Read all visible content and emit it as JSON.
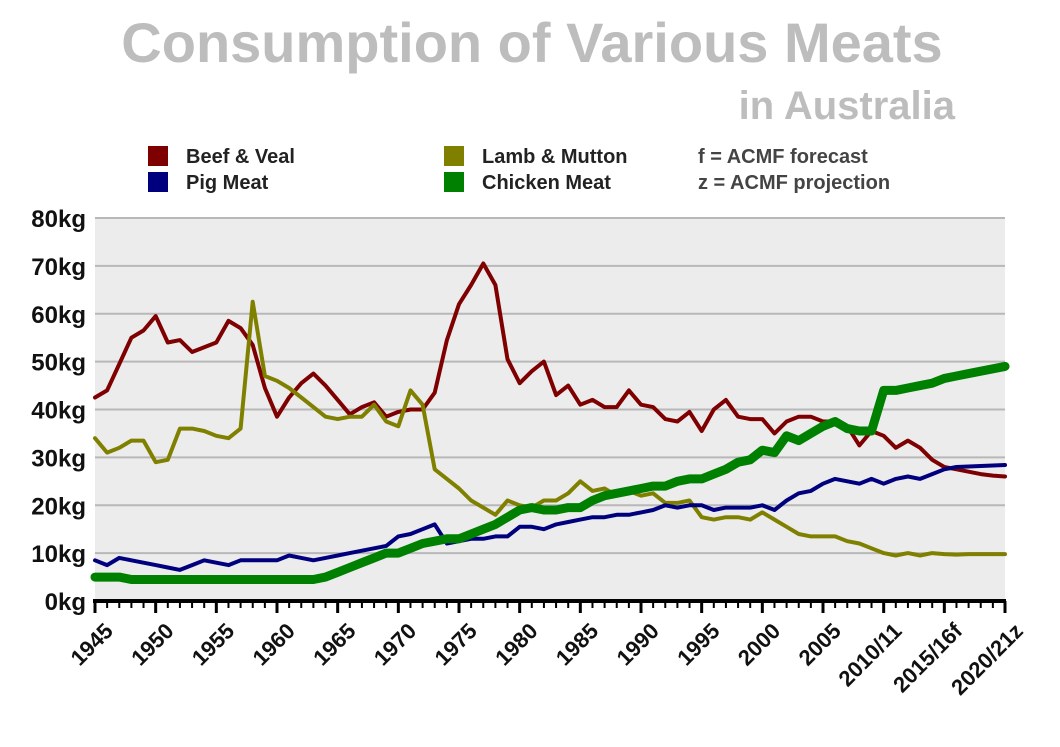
{
  "chart_data": {
    "type": "line",
    "title": "Consumption of Various Meats",
    "subtitle": "in Australia",
    "notes": [
      "f  = ACMF forecast",
      "z = ACMF projection"
    ],
    "x": [
      1945,
      1946,
      1947,
      1948,
      1949,
      1950,
      1951,
      1952,
      1953,
      1954,
      1955,
      1956,
      1957,
      1958,
      1959,
      1960,
      1961,
      1962,
      1963,
      1964,
      1965,
      1966,
      1967,
      1968,
      1969,
      1970,
      1971,
      1972,
      1973,
      1974,
      1975,
      1976,
      1977,
      1978,
      1979,
      1980,
      1981,
      1982,
      1983,
      1984,
      1985,
      1986,
      1987,
      1988,
      1989,
      1990,
      1991,
      1992,
      1993,
      1994,
      1995,
      1996,
      1997,
      1998,
      1999,
      2000,
      2001,
      2002,
      2003,
      2004,
      2005,
      2006,
      2007,
      2008,
      2009,
      2010,
      2011,
      2012,
      2013,
      2014,
      2015,
      2016,
      2017,
      2018,
      2019,
      2020
    ],
    "x_tick_labels": [
      {
        "x": 1945,
        "label": "1945"
      },
      {
        "x": 1950,
        "label": "1950"
      },
      {
        "x": 1955,
        "label": "1955"
      },
      {
        "x": 1960,
        "label": "1960"
      },
      {
        "x": 1965,
        "label": "1965"
      },
      {
        "x": 1970,
        "label": "1970"
      },
      {
        "x": 1975,
        "label": "1975"
      },
      {
        "x": 1980,
        "label": "1980"
      },
      {
        "x": 1985,
        "label": "1985"
      },
      {
        "x": 1990,
        "label": "1990"
      },
      {
        "x": 1995,
        "label": "1995"
      },
      {
        "x": 2000,
        "label": "2000"
      },
      {
        "x": 2005,
        "label": "2005"
      },
      {
        "x": 2010,
        "label": "2010/11"
      },
      {
        "x": 2015,
        "label": "2015/16f"
      },
      {
        "x": 2020,
        "label": "2020/21z"
      }
    ],
    "yticks": [
      0,
      10,
      20,
      30,
      40,
      50,
      60,
      70,
      80
    ],
    "ytick_labels": [
      "0kg",
      "10kg",
      "20kg",
      "30kg",
      "40kg",
      "50kg",
      "60kg",
      "70kg",
      "80kg"
    ],
    "ylim": [
      0,
      80
    ],
    "grid": true,
    "legend_position": "top",
    "series": [
      {
        "name": "Beef & Veal",
        "color": "#7f0000",
        "values": [
          42.5,
          44,
          49.5,
          55,
          56.5,
          59.5,
          54,
          54.5,
          52,
          53,
          54,
          58.5,
          57,
          53.5,
          44.5,
          38.5,
          42.5,
          45.5,
          47.5,
          45,
          42,
          39,
          40.5,
          41.5,
          38.5,
          39.5,
          40,
          40,
          43.5,
          54.5,
          62,
          66,
          70.5,
          66,
          50.5,
          45.5,
          48,
          50,
          43,
          45,
          41,
          42,
          40.5,
          40.5,
          44,
          41,
          40.5,
          38,
          37.5,
          39.5,
          35.5,
          40,
          42,
          38.5,
          38,
          38,
          35,
          37.5,
          38.5,
          38.5,
          37.5,
          37.5,
          36.5,
          32.5,
          35.5,
          34.5,
          32,
          33.5,
          32,
          29.5,
          28,
          27.5,
          27,
          26.5,
          26.2,
          26
        ]
      },
      {
        "name": "Lamb & Mutton",
        "color": "#808000",
        "values": [
          34,
          31,
          32,
          33.5,
          33.5,
          29,
          29.5,
          36,
          36,
          35.5,
          34.5,
          34,
          36,
          62.5,
          47,
          46,
          44.5,
          42.5,
          40.5,
          38.5,
          38,
          38.5,
          38.5,
          41,
          37.5,
          36.5,
          44,
          41,
          27.5,
          25.5,
          23.5,
          21,
          19.5,
          18,
          21,
          20,
          19.5,
          21,
          21,
          22.5,
          25,
          23,
          23.5,
          22,
          23,
          22,
          22.5,
          20.5,
          20.5,
          21,
          17.5,
          17,
          17.5,
          17.5,
          17,
          18.5,
          17,
          15.5,
          14,
          13.5,
          13.5,
          13.5,
          12.5,
          12,
          11,
          10,
          9.5,
          10,
          9.5,
          10,
          9.8,
          9.7,
          9.8,
          9.8,
          9.8,
          9.8
        ]
      },
      {
        "name": "Pig Meat",
        "color": "#00007f",
        "values": [
          8.5,
          7.5,
          9,
          8.5,
          8,
          7.5,
          7,
          6.5,
          7.5,
          8.5,
          8,
          7.5,
          8.5,
          8.5,
          8.5,
          8.5,
          9.5,
          9,
          8.5,
          9,
          9.5,
          10,
          10.5,
          11,
          11.5,
          13.5,
          14,
          15,
          16,
          12,
          12.5,
          13,
          13,
          13.5,
          13.5,
          15.5,
          15.5,
          15,
          16,
          16.5,
          17,
          17.5,
          17.5,
          18,
          18,
          18.5,
          19,
          20,
          19.5,
          20,
          20,
          19,
          19.5,
          19.5,
          19.5,
          20,
          19,
          21,
          22.5,
          23,
          24.5,
          25.5,
          25,
          24.5,
          25.5,
          24.5,
          25.5,
          26,
          25.5,
          26.5,
          27.5,
          28,
          28.1,
          28.2,
          28.3,
          28.4
        ]
      },
      {
        "name": "Chicken Meat",
        "color": "#008000",
        "values": [
          5,
          5,
          5,
          4.5,
          4.5,
          4.5,
          4.5,
          4.5,
          4.5,
          4.5,
          4.5,
          4.5,
          4.5,
          4.5,
          4.5,
          4.5,
          4.5,
          4.5,
          4.5,
          5,
          6,
          7,
          8,
          9,
          10,
          10,
          11,
          12,
          12.5,
          13,
          13,
          14,
          15,
          16,
          17.5,
          19,
          19.5,
          19,
          19,
          19.5,
          19.5,
          21,
          22,
          22.5,
          23,
          23.5,
          24,
          24,
          25,
          25.5,
          25.5,
          26.5,
          27.5,
          29,
          29.5,
          31.5,
          31,
          34.5,
          33.5,
          35,
          36.5,
          37.5,
          36,
          35.5,
          35.5,
          44,
          44,
          44.5,
          45,
          45.5,
          46.5,
          47,
          47.5,
          48,
          48.5,
          49
        ]
      }
    ]
  }
}
